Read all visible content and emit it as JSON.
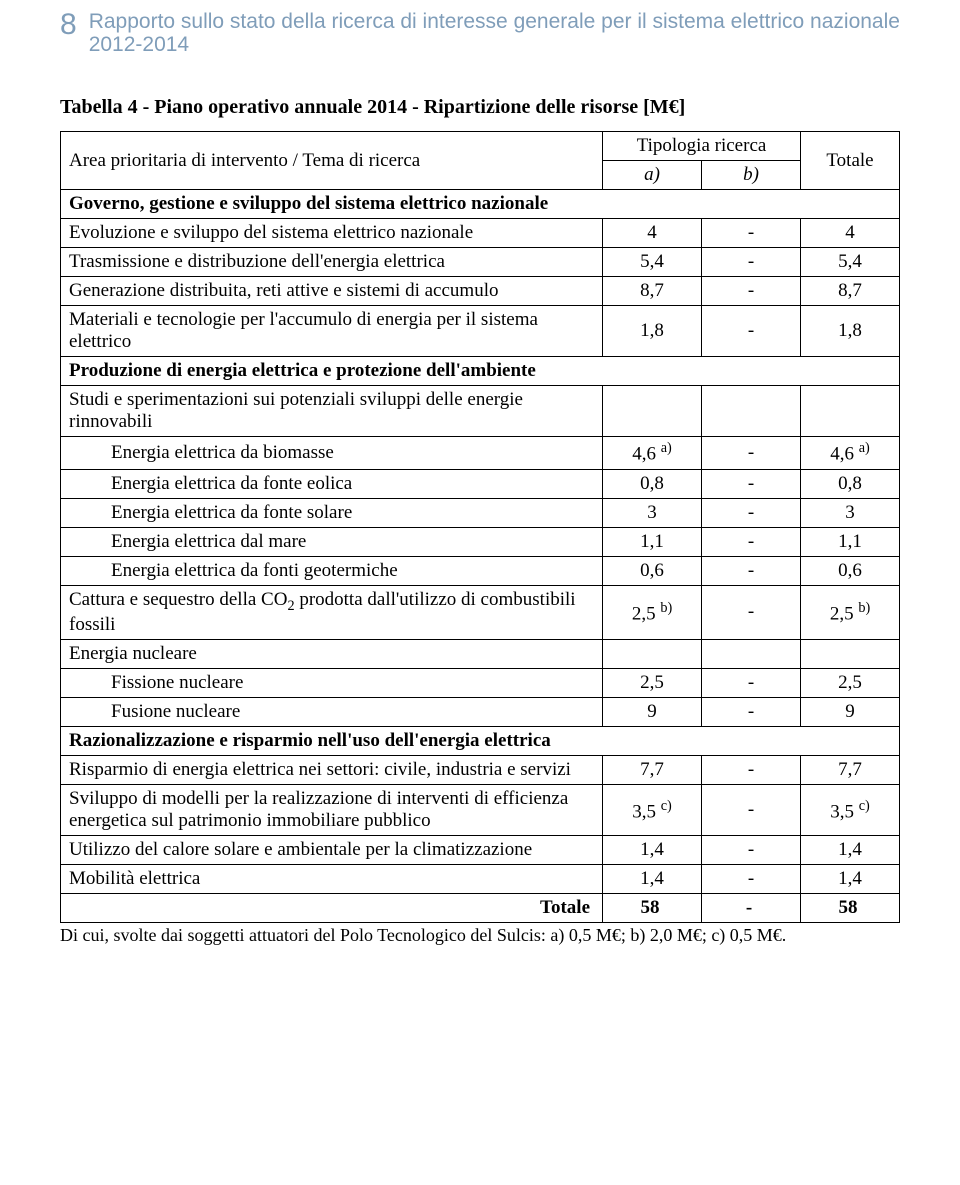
{
  "header": {
    "page_number": "8",
    "running_title": "Rapporto sullo stato della ricerca di interesse generale per il sistema elettrico nazionale 2012-2014"
  },
  "table": {
    "caption": "Tabella 4  -  Piano operativo annuale 2014 - Ripartizione delle risorse [M€]",
    "col_headers": {
      "area": "Area prioritaria di intervento / Tema di ricerca",
      "tipologia": "Tipologia ricerca",
      "a": "a)",
      "b": "b)",
      "totale": "Totale"
    },
    "sections": {
      "gov": "Governo, gestione e sviluppo del sistema elettrico nazionale",
      "prod": "Produzione di energia elettrica e protezione dell'ambiente",
      "raz": "Razionalizzazione e risparmio nell'uso dell'energia elettrica"
    },
    "rows": {
      "evoluzione": {
        "label": "Evoluzione e sviluppo del sistema elettrico nazionale",
        "a": "4",
        "b": "-",
        "t": "4"
      },
      "trasmissione": {
        "label": "Trasmissione e distribuzione dell'energia elettrica",
        "a": "5,4",
        "b": "-",
        "t": "5,4"
      },
      "generazione": {
        "label": "Generazione distribuita, reti attive e sistemi di accumulo",
        "a": "8,7",
        "b": "-",
        "t": "8,7"
      },
      "materiali": {
        "label": "Materiali e tecnologie per l'accumulo di energia per il sistema elettrico",
        "a": "1,8",
        "b": "-",
        "t": "1,8"
      },
      "studi": {
        "label": "Studi e sperimentazioni sui potenziali sviluppi  delle energie rinnovabili"
      },
      "biomasse": {
        "label": "Energia elettrica da biomasse",
        "a_num": "4,6",
        "a_sup": "a)",
        "b": "-",
        "t_num": "4,6",
        "t_sup": "a)"
      },
      "eolica": {
        "label": "Energia elettrica da fonte eolica",
        "a": "0,8",
        "b": "-",
        "t": "0,8"
      },
      "solare": {
        "label": "Energia elettrica da fonte solare",
        "a": "3",
        "b": "-",
        "t": "3"
      },
      "mare": {
        "label": "Energia elettrica dal mare",
        "a": "1,1",
        "b": "-",
        "t": "1,1"
      },
      "geotermiche": {
        "label": "Energia elettrica da fonti geotermiche",
        "a": "0,6",
        "b": "-",
        "t": "0,6"
      },
      "cattura_pre": "Cattura e sequestro della CO",
      "cattura_sub": "2",
      "cattura_post": "  prodotta dall'utilizzo di combustibili fossili",
      "cattura": {
        "a_num": "2,5",
        "a_sup": "b)",
        "b": "-",
        "t_num": "2,5",
        "t_sup": "b)"
      },
      "nucleare": {
        "label": "Energia nucleare"
      },
      "fissione": {
        "label": "Fissione nucleare",
        "a": "2,5",
        "b": "-",
        "t": "2,5"
      },
      "fusione": {
        "label": "Fusione nucleare",
        "a": "9",
        "b": "-",
        "t": "9"
      },
      "risparmio": {
        "label": "Risparmio di energia elettrica nei settori: civile, industria e servizi",
        "a": "7,7",
        "b": "-",
        "t": "7,7"
      },
      "sviluppo": {
        "label": "Sviluppo di modelli per la realizzazione di interventi di efficienza energetica sul patrimonio immobiliare pubblico",
        "a_num": "3,5",
        "a_sup": "c)",
        "b": "-",
        "t_num": "3,5",
        "t_sup": "c)"
      },
      "calore": {
        "label": "Utilizzo del calore solare e ambientale per la climatizzazione",
        "a": "1,4",
        "b": "-",
        "t": "1,4"
      },
      "mobilita": {
        "label": "Mobilità elettrica",
        "a": "1,4",
        "b": "-",
        "t": "1,4"
      },
      "totale": {
        "label": "Totale",
        "a": "58",
        "b": "-",
        "t": "58"
      }
    }
  },
  "footnote": "Di cui, svolte dai soggetti attuatori del Polo Tecnologico del Sulcis:  a) 0,5 M€;   b) 2,0 M€;   c) 0,5 M€."
}
